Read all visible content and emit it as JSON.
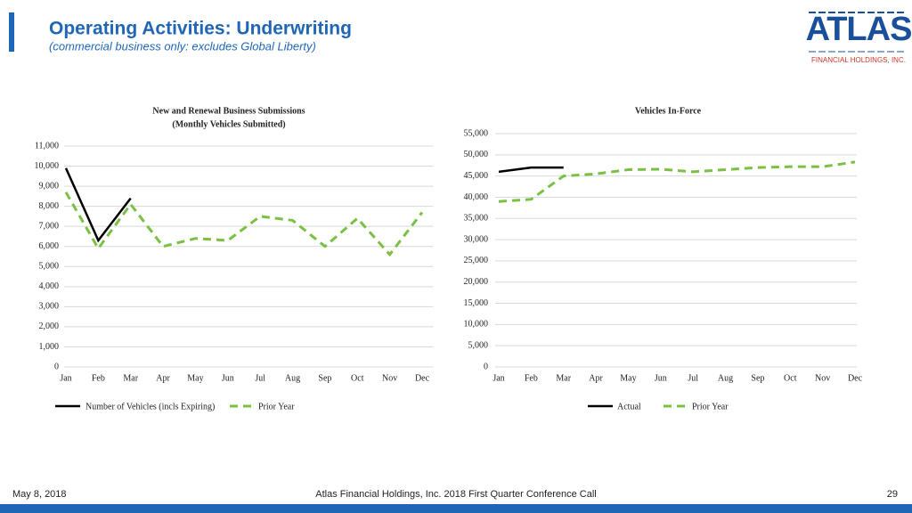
{
  "header": {
    "title": "Operating Activities: Underwriting",
    "subtitle": "(commercial business only: excludes Global Liberty)",
    "logo": "ATLAS",
    "logo_sub": "FINANCIAL HOLDINGS, INC."
  },
  "footer": {
    "date": "May 8, 2018",
    "event": "Atlas Financial Holdings, Inc. 2018 First Quarter Conference Call",
    "page": "29"
  },
  "chart_data": [
    {
      "type": "line",
      "title": "New and Renewal Business Submissions",
      "subtitle": "(Monthly Vehicles Submitted)",
      "categories": [
        "Jan",
        "Feb",
        "Mar",
        "Apr",
        "May",
        "Jun",
        "Jul",
        "Aug",
        "Sep",
        "Oct",
        "Nov",
        "Dec"
      ],
      "series": [
        {
          "name": "Number of Vehicles (incls Expiring)",
          "color": "#000000",
          "dash": false,
          "values": [
            9900,
            6300,
            8400,
            null,
            null,
            null,
            null,
            null,
            null,
            null,
            null,
            null
          ]
        },
        {
          "name": "Prior Year",
          "color": "#7ac143",
          "dash": true,
          "values": [
            8700,
            5900,
            8100,
            6000,
            6400,
            6300,
            7500,
            7300,
            6000,
            7400,
            5600,
            7700
          ]
        }
      ],
      "ylim": [
        0,
        11000
      ],
      "yticks": [
        0,
        {
          "value": 1000,
          "label": "1,000"
        },
        {
          "value": 2000,
          "label": "2,000"
        },
        {
          "value": 3000,
          "label": "3,000"
        },
        {
          "value": 4000,
          "label": "4,000"
        },
        {
          "value": 5000,
          "label": "5,000"
        },
        {
          "value": 6000,
          "label": "6,000"
        },
        {
          "value": 7000,
          "label": "7,000"
        },
        {
          "value": 8000,
          "label": "8,000"
        },
        {
          "value": 9000,
          "label": "9,000"
        },
        {
          "value": 10000,
          "label": "10,000"
        },
        {
          "value": 11000,
          "label": "11,000"
        }
      ],
      "grid": true
    },
    {
      "type": "line",
      "title": "Vehicles In-Force",
      "categories": [
        "Jan",
        "Feb",
        "Mar",
        "Apr",
        "May",
        "Jun",
        "Jul",
        "Aug",
        "Sep",
        "Oct",
        "Nov",
        "Dec"
      ],
      "series": [
        {
          "name": "Actual",
          "color": "#000000",
          "dash": false,
          "values": [
            46000,
            47000,
            47000,
            null,
            null,
            null,
            null,
            null,
            null,
            null,
            null,
            null
          ]
        },
        {
          "name": "Prior Year",
          "color": "#7ac143",
          "dash": true,
          "values": [
            39000,
            39500,
            45000,
            45500,
            46500,
            46600,
            46000,
            46500,
            47000,
            47200,
            47200,
            48300
          ]
        }
      ],
      "ylim": [
        0,
        55000
      ],
      "yticks": [
        0,
        {
          "value": 5000,
          "label": "5,000"
        },
        {
          "value": 10000,
          "label": "10,000"
        },
        {
          "value": 15000,
          "label": "15,000"
        },
        {
          "value": 20000,
          "label": "20,000"
        },
        {
          "value": 25000,
          "label": "25,000"
        },
        {
          "value": 30000,
          "label": "30,000"
        },
        {
          "value": 35000,
          "label": "35,000"
        },
        {
          "value": 40000,
          "label": "40,000"
        },
        {
          "value": 45000,
          "label": "45,000"
        },
        {
          "value": 50000,
          "label": "50,000"
        },
        {
          "value": 55000,
          "label": "55,000"
        }
      ],
      "grid": true
    }
  ]
}
